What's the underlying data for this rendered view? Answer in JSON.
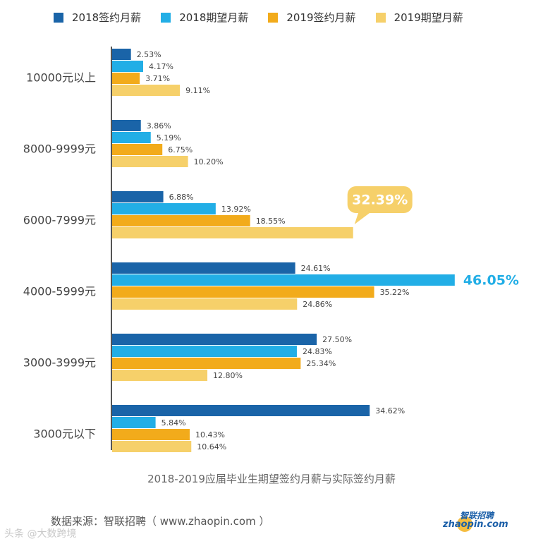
{
  "legend": [
    {
      "label": "2018签约月薪",
      "color": "#1a64a8"
    },
    {
      "label": "2018期望月薪",
      "color": "#22aee6"
    },
    {
      "label": "2019签约月薪",
      "color": "#f2ab1b"
    },
    {
      "label": "2019期望月薪",
      "color": "#f6d06a"
    }
  ],
  "chart_data": {
    "type": "bar",
    "orientation": "horizontal",
    "categories": [
      "10000元以上",
      "8000-9999元",
      "6000-7999元",
      "4000-5999元",
      "3000-3999元",
      "3000元以下"
    ],
    "series": [
      {
        "name": "2018签约月薪",
        "color": "#1a64a8",
        "values": [
          2.53,
          3.86,
          6.88,
          24.61,
          27.5,
          34.62
        ],
        "labels": [
          "2.53%",
          "3.86%",
          "6.88%",
          "24.61%",
          "27.50%",
          "34.62%"
        ]
      },
      {
        "name": "2018期望月薪",
        "color": "#22aee6",
        "values": [
          4.17,
          5.19,
          13.92,
          46.05,
          24.83,
          5.84
        ],
        "labels": [
          "4.17%",
          "5.19%",
          "13.92%",
          "46.05%",
          "24.83%",
          "5.84%"
        ]
      },
      {
        "name": "2019签约月薪",
        "color": "#f2ab1b",
        "values": [
          3.71,
          6.75,
          18.55,
          35.22,
          25.34,
          10.43
        ],
        "labels": [
          "3.71%",
          "6.75%",
          "18.55%",
          "35.22%",
          "25.34%",
          "10.43%"
        ]
      },
      {
        "name": "2019期望月薪",
        "color": "#f6d06a",
        "values": [
          9.11,
          10.2,
          32.39,
          24.86,
          12.8,
          10.64
        ],
        "labels": [
          "9.11%",
          "10.20%",
          "32.39%",
          "24.86%",
          "12.80%",
          "10.64%"
        ]
      }
    ],
    "highlights": [
      {
        "series": 1,
        "category": 3,
        "label": "46.05%",
        "style": "large-text",
        "color": "#22aee6"
      },
      {
        "series": 3,
        "category": 2,
        "label": "32.39%",
        "style": "callout-bubble",
        "color": "#f6d06a"
      }
    ],
    "xlim": [
      0,
      50
    ],
    "grid": false,
    "title": "2018-2019应届毕业生期望签约月薪与实际签约月薪"
  },
  "caption": "2018-2019应届毕业生期望签约月薪与实际签约月薪",
  "source": "数据来源：智联招聘（ www.zhaopin.com ）",
  "logo": {
    "cn": "智联招聘",
    "en": "zhaopin.com"
  },
  "watermark": "头条 @大数跨境"
}
